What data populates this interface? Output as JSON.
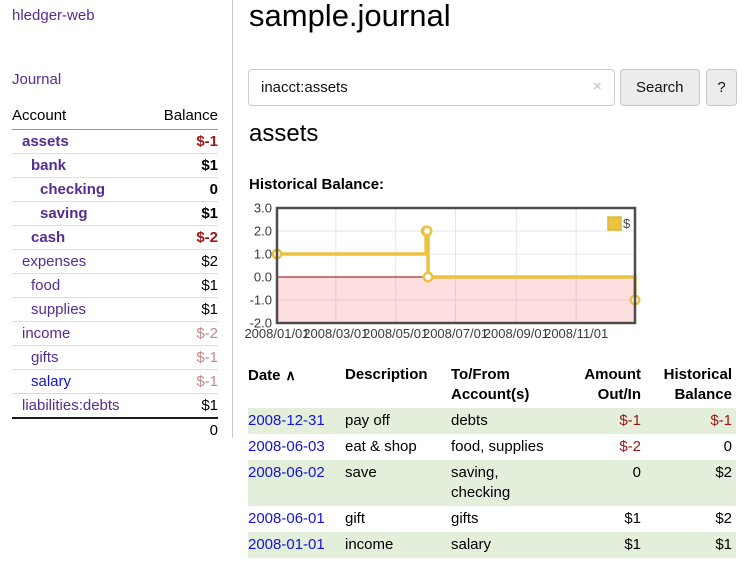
{
  "app": {
    "brand": "hledger-web",
    "nav_journal": "Journal"
  },
  "sidebar": {
    "header": {
      "account": "Account",
      "balance": "Balance"
    },
    "accounts": [
      {
        "name": "assets",
        "indent": 1,
        "bold": true,
        "link": "purple",
        "balance": "$-1",
        "balance_class": "neg-strong"
      },
      {
        "name": "bank",
        "indent": 2,
        "bold": true,
        "link": "purple",
        "balance": "$1",
        "balance_class": ""
      },
      {
        "name": "checking",
        "indent": 3,
        "bold": true,
        "link": "purple",
        "balance": "0",
        "balance_class": ""
      },
      {
        "name": "saving",
        "indent": 3,
        "bold": true,
        "link": "purple",
        "balance": "$1",
        "balance_class": ""
      },
      {
        "name": "cash",
        "indent": 2,
        "bold": true,
        "link": "purple",
        "balance": "$-2",
        "balance_class": "neg-strong"
      },
      {
        "name": "expenses",
        "indent": 1,
        "bold": false,
        "link": "purple",
        "balance": "$2",
        "balance_class": ""
      },
      {
        "name": "food",
        "indent": 2,
        "bold": false,
        "link": "purple",
        "balance": "$1",
        "balance_class": ""
      },
      {
        "name": "supplies",
        "indent": 2,
        "bold": false,
        "link": "purple",
        "balance": "$1",
        "balance_class": ""
      },
      {
        "name": "income",
        "indent": 1,
        "bold": false,
        "link": "purple",
        "balance": "$-2",
        "balance_class": "neg-soft"
      },
      {
        "name": "gifts",
        "indent": 2,
        "bold": false,
        "link": "purple",
        "balance": "$-1",
        "balance_class": "neg-soft"
      },
      {
        "name": "salary",
        "indent": 2,
        "bold": false,
        "link": "blue",
        "balance": "$-1",
        "balance_class": "neg-soft"
      },
      {
        "name": "liabilities:debts",
        "indent": 1,
        "bold": false,
        "link": "purple",
        "balance": "$1",
        "balance_class": ""
      }
    ],
    "total": "0"
  },
  "header": {
    "title": "sample.journal"
  },
  "search": {
    "value": "inacct:assets",
    "clear_label": "×",
    "button": "Search",
    "help_button": "?"
  },
  "account_page": {
    "title": "assets",
    "chart_label": "Historical Balance:"
  },
  "chart_data": {
    "type": "line",
    "step": true,
    "title": "Historical Balance",
    "legend": "$",
    "legend_position": "top-right",
    "series": [
      {
        "name": "$",
        "color": "#edc240",
        "points": [
          {
            "date": "2008-01-01",
            "value": 1
          },
          {
            "date": "2008-06-01",
            "value": 2
          },
          {
            "date": "2008-06-02",
            "value": 2
          },
          {
            "date": "2008-06-03",
            "value": 0
          },
          {
            "date": "2008-12-31",
            "value": -1
          }
        ]
      }
    ],
    "xrange": [
      "2008-01-01",
      "2008-12-31"
    ],
    "ylim": [
      -2,
      3
    ],
    "yticks": [
      "3.0",
      "2.0",
      "1.0",
      "0.0",
      "-1.0",
      "-2.0"
    ],
    "xticks": [
      {
        "date": "2008-01-01",
        "label": "2008/01/01"
      },
      {
        "date": "2008-03-01",
        "label": "2008/03/01"
      },
      {
        "date": "2008-05-01",
        "label": "2008/05/01"
      },
      {
        "date": "2008-07-01",
        "label": "2008/07/01"
      },
      {
        "date": "2008-09-01",
        "label": "2008/09/01"
      },
      {
        "date": "2008-11-01",
        "label": "2008/11/01"
      }
    ],
    "grid": true,
    "below_zero_fill": "rgba(250,110,110,0.22)",
    "zero_line_color": "#8e0000",
    "border_color": "#4d4d4d",
    "grid_color": "#e5e5e5"
  },
  "transactions": {
    "headers": {
      "date": "Date",
      "sort_icon": "∧",
      "description": "Description",
      "accounts": "To/From Account(s)",
      "amount": "Amount Out/In",
      "balance": "Historical Balance"
    },
    "rows": [
      {
        "date": "2008-12-31",
        "description": "pay off",
        "accounts": "debts",
        "amount": "$-1",
        "balance": "$-1"
      },
      {
        "date": "2008-06-03",
        "description": "eat & shop",
        "accounts": "food, supplies",
        "amount": "$-2",
        "balance": "0"
      },
      {
        "date": "2008-06-02",
        "description": "save",
        "accounts": "saving, checking",
        "amount": "0",
        "balance": "$2"
      },
      {
        "date": "2008-06-01",
        "description": "gift",
        "accounts": "gifts",
        "amount": "$1",
        "balance": "$2"
      },
      {
        "date": "2008-01-01",
        "description": "income",
        "accounts": "salary",
        "amount": "$1",
        "balance": "$1"
      }
    ]
  }
}
